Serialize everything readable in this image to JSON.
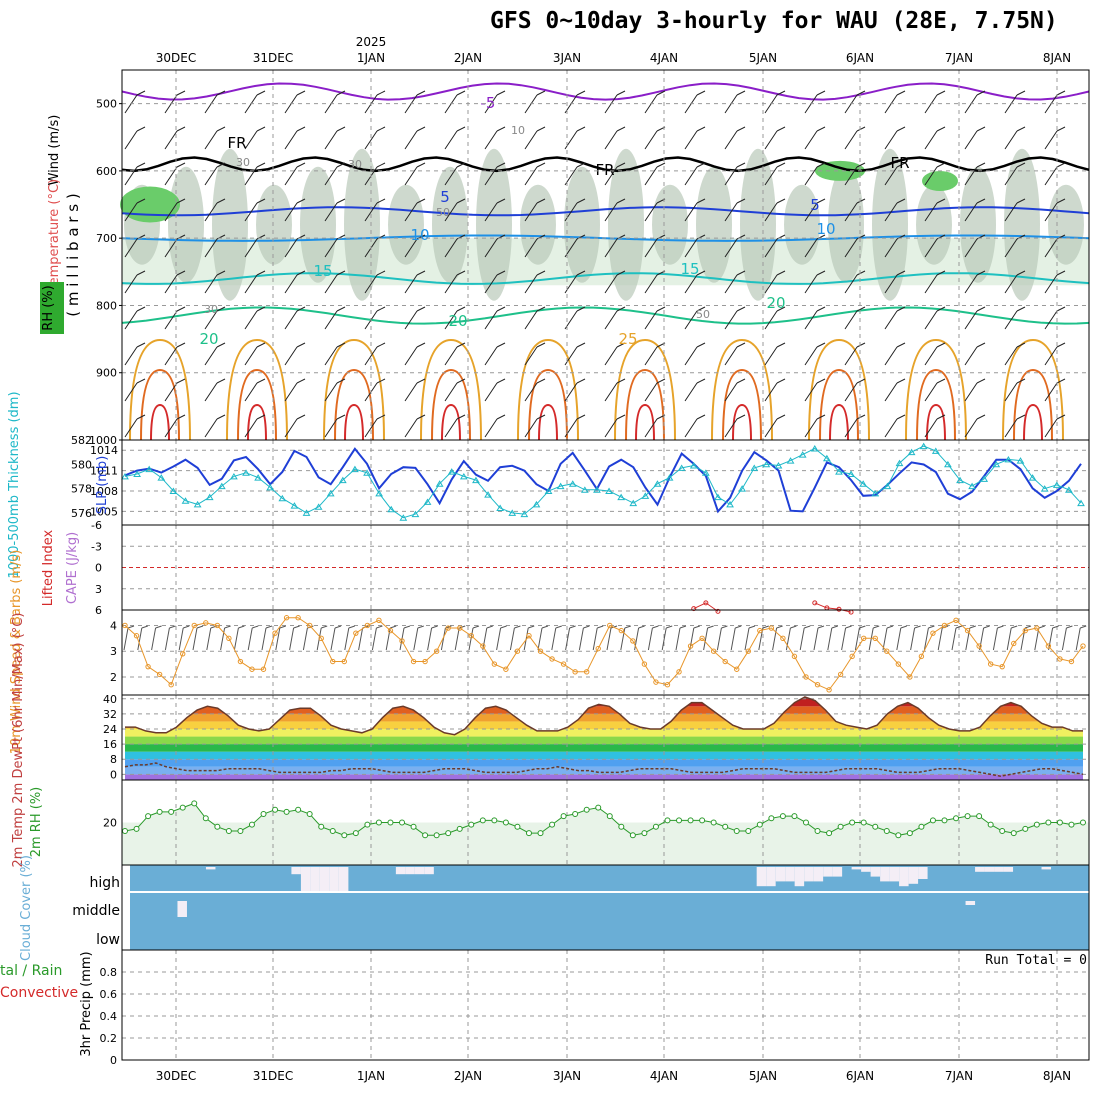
{
  "title": "GFS 0~10day 3-hourly for WAU (28E, 7.75N)",
  "year_label": "2025",
  "run_total": "Run Total = 0",
  "colors": {
    "purple": "#8a1ec8",
    "blue_dark": "#1f3fd6",
    "blue": "#1e90e6",
    "teal": "#1ec0c0",
    "green": "#1ec08a",
    "orange": "#e6a32a",
    "orange_dark": "#e06a20",
    "red": "#d42a2a",
    "slp": "#1f3fd6",
    "thick": "#1eb8c8",
    "wind": "#e8962a",
    "rh": "#2a9a2a",
    "cloud": "#6aaed6"
  },
  "chart_data": [
    {
      "type": "contour",
      "panel": "upper-air",
      "ylabel_parts": [
        "Wind (m/s)",
        "Temperature (°C)",
        "RH (%)",
        "( m i l l i b a r s )"
      ],
      "yticks": [
        "500",
        "600",
        "700",
        "800",
        "900",
        "1000"
      ],
      "contour_labels": [
        "-5",
        "10",
        "FR",
        "FR",
        "FR",
        "5",
        "5",
        "10",
        "10",
        "15",
        "15",
        "20",
        "20",
        "20",
        "25",
        "30",
        "30",
        "30",
        "50",
        "50"
      ],
      "x": [
        "30DEC",
        "31DEC",
        "1JAN",
        "2JAN",
        "3JAN",
        "4JAN",
        "5JAN",
        "6JAN",
        "7JAN",
        "8JAN"
      ],
      "ylim": [
        450,
        1000
      ]
    },
    {
      "type": "line",
      "panel": "slp-thickness",
      "ylabel_left": "1000-500mb Thickness (dm)",
      "ylabel_right": "SLP (mb)",
      "yticks_left": [
        "582",
        "580",
        "578",
        "576"
      ],
      "yticks_right": [
        "1014",
        "1011",
        "1008",
        "1005"
      ],
      "ylim_left": [
        575,
        582
      ],
      "ylim_right": [
        1003,
        1015.5
      ],
      "series": [
        {
          "values": [
            1010.3,
            1011,
            1011.3,
            1010.7,
            1011.6,
            1012.6,
            1011.4,
            1008.9,
            1009.8,
            1012.5,
            1013,
            1011.2,
            1009,
            1010.8,
            1013.9,
            1013,
            1010,
            1009,
            1011.5,
            1014.2,
            1012,
            1008.4,
            1010.5,
            1011.5,
            1011.4,
            1009,
            1006.2,
            1009.7,
            1012.4,
            1010.4,
            1009.5,
            1011.5,
            1011.7,
            1011,
            1009,
            1008,
            1012,
            1013.6,
            1011,
            1008.3,
            1011.6,
            1012.6,
            1011.5,
            1008.5,
            1006,
            1010,
            1013.5,
            1012,
            1010.2,
            1005,
            1007,
            1011,
            1013.7,
            1012.5,
            1011,
            1005.1,
            1005,
            1008.5,
            1012.2,
            1011.5,
            1009.6,
            1007.3,
            1007.4,
            1008.9,
            1010.6,
            1012.2,
            1011.9,
            1010.8,
            1007.6,
            1006.8,
            1007.9,
            1010.2,
            1012.6,
            1012.6,
            1011.2,
            1008.4,
            1007,
            1008,
            1009.5,
            1012
          ]
        },
        {
          "values": [
            579,
            579.2,
            579.6,
            578.9,
            577.8,
            577,
            576.7,
            577.3,
            578.2,
            579,
            579.3,
            578.9,
            578.1,
            577.2,
            576.6,
            576,
            576.5,
            577.6,
            578.7,
            579.6,
            579.3,
            577.6,
            576.3,
            575.6,
            575.9,
            576.9,
            578.4,
            579.4,
            579,
            578.7,
            577.5,
            576.4,
            576,
            575.9,
            576.7,
            577.8,
            578.2,
            578.4,
            577.9,
            577.9,
            577.8,
            577.3,
            576.8,
            577.4,
            578.4,
            578.9,
            579.7,
            579.9,
            579.3,
            577.3,
            576.7,
            578,
            579.7,
            580,
            579.9,
            580.3,
            580.8,
            581.3,
            580.5,
            579.4,
            579.2,
            578.4,
            577.6,
            578.2,
            580.1,
            581,
            581.5,
            581.1,
            580,
            578.7,
            578.2,
            578.8,
            580,
            580.4,
            580.3,
            578.9,
            578,
            578.3,
            577.9,
            576.8
          ]
        }
      ]
    },
    {
      "type": "line",
      "panel": "lifted-index-cape",
      "ylabel_left": "Lifted Index",
      "ylabel_right": "CAPE (J/kg)",
      "yticks": [
        "-6",
        "-3",
        "0",
        "3",
        "6"
      ],
      "ylim": [
        -6,
        6
      ],
      "series": [
        {
          "values": [
            null,
            null,
            null,
            null,
            null,
            null,
            null,
            null,
            null,
            null,
            null,
            null,
            null,
            null,
            null,
            null,
            null,
            null,
            null,
            null,
            null,
            null,
            null,
            null,
            null,
            null,
            null,
            null,
            null,
            null,
            null,
            null,
            null,
            null,
            null,
            null,
            null,
            null,
            null,
            null,
            null,
            null,
            null,
            null,
            null,
            null,
            null,
            5.8,
            5,
            6.2,
            null,
            null,
            null,
            null,
            null,
            null,
            null,
            5.0,
            5.7,
            5.9,
            6.3,
            null,
            null,
            null,
            null,
            null,
            null,
            null,
            null,
            null,
            null,
            null,
            null,
            null,
            null,
            null,
            null,
            null,
            null,
            null
          ]
        }
      ]
    },
    {
      "type": "line",
      "panel": "10m-wind",
      "ylabel": "10m Wind Speed & Barbs (m/s)",
      "yticks": [
        "4",
        "3",
        "2"
      ],
      "ylim": [
        1.3,
        4.6
      ],
      "series": [
        {
          "values": [
            4.0,
            3.6,
            2.4,
            2.1,
            1.7,
            2.9,
            4.0,
            4.1,
            4.0,
            3.5,
            2.6,
            2.3,
            2.3,
            3.7,
            4.3,
            4.3,
            4.0,
            3.5,
            2.6,
            2.6,
            3.7,
            4.0,
            4.2,
            3.8,
            3.4,
            2.6,
            2.6,
            3.0,
            3.9,
            3.9,
            3.6,
            3.2,
            2.5,
            2.3,
            3.0,
            3.6,
            3.0,
            2.7,
            2.5,
            2.2,
            2.2,
            3.1,
            4.0,
            3.8,
            3.4,
            2.5,
            1.8,
            1.7,
            2.2,
            3.2,
            3.5,
            3.0,
            2.6,
            2.3,
            3.0,
            3.8,
            3.9,
            3.5,
            2.8,
            2.0,
            1.7,
            1.5,
            2.1,
            2.8,
            3.5,
            3.5,
            3.0,
            2.5,
            2.0,
            2.8,
            3.7,
            4.0,
            4.2,
            3.8,
            3.2,
            2.5,
            2.4,
            3.3,
            3.8,
            3.9,
            3.2,
            2.7,
            2.6,
            3.2
          ]
        }
      ]
    },
    {
      "type": "area",
      "panel": "2m-temp",
      "ylabel": "2m Temp 2m DewPt (6hr Min/Max) (°C)",
      "yticks": [
        "40",
        "32",
        "24",
        "16",
        "8",
        "0"
      ],
      "ylim": [
        -3,
        42
      ],
      "series": [
        {
          "values": [
            25,
            25,
            23,
            22,
            22,
            25,
            30,
            34,
            36,
            35,
            31,
            26,
            24,
            23,
            24,
            29,
            34,
            35,
            35,
            31,
            26,
            24,
            23,
            22,
            24,
            30,
            35,
            36,
            34,
            30,
            25,
            22,
            21,
            24,
            30,
            35,
            36,
            34,
            30,
            26,
            23,
            23,
            23,
            25,
            29,
            35,
            37,
            36,
            32,
            27,
            25,
            24,
            24,
            28,
            34,
            38,
            38,
            34,
            30,
            26,
            24,
            24,
            24,
            27,
            33,
            38,
            41,
            39,
            34,
            28,
            26,
            25,
            24,
            26,
            32,
            36,
            38,
            35,
            30,
            26,
            24,
            23,
            23,
            25,
            31,
            36,
            38,
            36,
            31,
            27,
            25,
            25,
            23,
            23
          ]
        },
        {
          "values": [
            4,
            5,
            5,
            6,
            4,
            3,
            2,
            2,
            2,
            2,
            3,
            3,
            3,
            3,
            2,
            1,
            1,
            1,
            1,
            1,
            2,
            2,
            3,
            3,
            3,
            2,
            1,
            1,
            1,
            1,
            2,
            3,
            3,
            3,
            2,
            1,
            1,
            1,
            1,
            2,
            3,
            3,
            4,
            3,
            2,
            2,
            1,
            1,
            1,
            2,
            3,
            3,
            3,
            3,
            2,
            1,
            1,
            1,
            1,
            2,
            3,
            3,
            3,
            3,
            2,
            1,
            1,
            1,
            1,
            2,
            3,
            3,
            3,
            3,
            2,
            1,
            1,
            1,
            2,
            3,
            3,
            3,
            2,
            1,
            0,
            -1,
            0,
            1,
            2,
            3,
            3,
            2,
            1,
            0
          ]
        }
      ]
    },
    {
      "type": "line",
      "panel": "2m-rh",
      "ylabel": "2m RH (%)",
      "yticks": [
        "20"
      ],
      "ylim": [
        0,
        40
      ],
      "series": [
        {
          "values": [
            16,
            17,
            23,
            25,
            25,
            27,
            29,
            22,
            18,
            16,
            16,
            19,
            24,
            26,
            25,
            26,
            24,
            18,
            16,
            14,
            15,
            19,
            20,
            20,
            20,
            18,
            14,
            14,
            15,
            17,
            19,
            21,
            21,
            20,
            18,
            15,
            15,
            19,
            23,
            24,
            26,
            27,
            23,
            18,
            14,
            15,
            18,
            21,
            21,
            21,
            21,
            20,
            18,
            16,
            16,
            19,
            22,
            23,
            23,
            20,
            16,
            15,
            18,
            20,
            20,
            18,
            16,
            14,
            15,
            18,
            21,
            21,
            22,
            23,
            23,
            19,
            16,
            15,
            17,
            19,
            20,
            20,
            19,
            20
          ]
        }
      ]
    },
    {
      "type": "bar",
      "panel": "cloud-cover",
      "ylabel": "Cloud Cover (%)",
      "yticks": [
        "high",
        "middle",
        "low"
      ],
      "series": [
        {
          "name": "high",
          "values": [
            0,
            0,
            0,
            0,
            0,
            0,
            0,
            0,
            10,
            0,
            0,
            0,
            0,
            0,
            0,
            0,
            0,
            30,
            100,
            100,
            100,
            100,
            100,
            0,
            0,
            0,
            0,
            0,
            30,
            30,
            30,
            30,
            0,
            0,
            0,
            0,
            0,
            0,
            0,
            0,
            0,
            0,
            0,
            0,
            0,
            0,
            0,
            0,
            0,
            0,
            0,
            0,
            0,
            0,
            0,
            0,
            0,
            0,
            0,
            0,
            0,
            0,
            0,
            0,
            0,
            0,
            80,
            80,
            60,
            60,
            80,
            60,
            60,
            40,
            40,
            0,
            10,
            20,
            40,
            60,
            60,
            80,
            70,
            50,
            0,
            0,
            0,
            0,
            0,
            20,
            20,
            20,
            20,
            0,
            0,
            0,
            10,
            0,
            0,
            0,
            0
          ]
        },
        {
          "name": "middle",
          "values": [
            0,
            0,
            0,
            0,
            0,
            80,
            0,
            0,
            0,
            0,
            0,
            0,
            0,
            0,
            0,
            0,
            0,
            0,
            0,
            0,
            0,
            0,
            0,
            0,
            0,
            0,
            0,
            0,
            0,
            0,
            0,
            0,
            0,
            0,
            0,
            0,
            0,
            0,
            0,
            0,
            0,
            0,
            0,
            0,
            0,
            0,
            0,
            0,
            0,
            0,
            0,
            0,
            0,
            0,
            0,
            0,
            0,
            0,
            0,
            0,
            0,
            0,
            0,
            0,
            0,
            0,
            0,
            0,
            0,
            0,
            0,
            0,
            0,
            0,
            0,
            0,
            0,
            0,
            0,
            0,
            0,
            0,
            0,
            0,
            0,
            0,
            0,
            0,
            20,
            0,
            0,
            0,
            0,
            0,
            0,
            0,
            0,
            0,
            0,
            0,
            0
          ]
        }
      ]
    },
    {
      "type": "bar",
      "panel": "precip",
      "ylabel": "3hr Precip (mm)",
      "ylabel_left_green": "tal / Rain",
      "ylabel_left_red": "Convective",
      "yticks": [
        "0.8",
        "0.6",
        "0.4",
        "0.2",
        "0"
      ],
      "ylim": [
        0,
        1
      ],
      "series": [
        {
          "values": []
        }
      ]
    }
  ]
}
